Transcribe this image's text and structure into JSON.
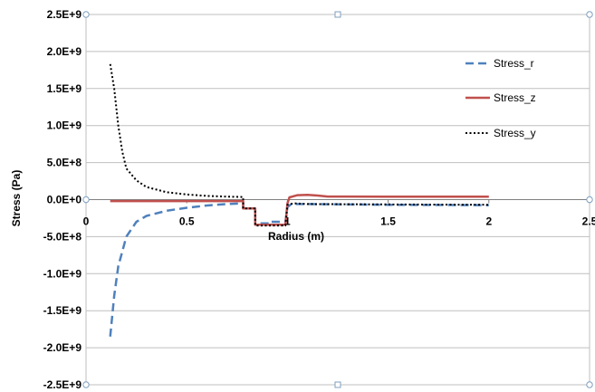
{
  "chart_data": {
    "type": "line",
    "xlabel": "Radius (m)",
    "ylabel": "Stress (Pa)",
    "xlim": [
      0,
      2.5
    ],
    "ylim": [
      -2500000000,
      2500000000
    ],
    "x_ticks": [
      "0",
      "0.5",
      "1",
      "1.5",
      "2",
      "2.5"
    ],
    "y_ticks": [
      "2.5E+9",
      "2.0E+9",
      "1.5E+9",
      "1.0E+9",
      "5.0E+8",
      "0.0E+0",
      "-5.0E+8",
      "-1.0E+9",
      "-1.5E+9",
      "-2.0E+9",
      "-2.5E+9"
    ],
    "grid": true,
    "legend_position": "top-right",
    "series": [
      {
        "name": "Stress_r",
        "color": "#4f81bd",
        "style": "dashed",
        "points": [
          [
            0.12,
            -1850000000
          ],
          [
            0.14,
            -1300000000
          ],
          [
            0.16,
            -900000000
          ],
          [
            0.2,
            -500000000
          ],
          [
            0.25,
            -300000000
          ],
          [
            0.3,
            -220000000
          ],
          [
            0.4,
            -150000000
          ],
          [
            0.5,
            -110000000
          ],
          [
            0.6,
            -80000000
          ],
          [
            0.7,
            -60000000
          ],
          [
            0.78,
            -50000000
          ],
          [
            0.78,
            -120000000
          ],
          [
            0.84,
            -120000000
          ],
          [
            0.84,
            -320000000
          ],
          [
            0.92,
            -320000000
          ],
          [
            0.92,
            -300000000
          ],
          [
            0.99,
            -300000000
          ],
          [
            1.0,
            -100000000
          ],
          [
            1.02,
            -60000000
          ],
          [
            1.1,
            -60000000
          ],
          [
            1.5,
            -70000000
          ],
          [
            2.0,
            -75000000
          ]
        ]
      },
      {
        "name": "Stress_z",
        "color": "#c0504d",
        "style": "solid",
        "points": [
          [
            0.12,
            -20000000
          ],
          [
            0.5,
            -20000000
          ],
          [
            0.78,
            -20000000
          ],
          [
            0.78,
            -120000000
          ],
          [
            0.84,
            -120000000
          ],
          [
            0.84,
            -340000000
          ],
          [
            0.99,
            -340000000
          ],
          [
            1.0,
            -50000000
          ],
          [
            1.01,
            30000000
          ],
          [
            1.05,
            60000000
          ],
          [
            1.1,
            65000000
          ],
          [
            1.15,
            55000000
          ],
          [
            1.2,
            42000000
          ],
          [
            1.5,
            40000000
          ],
          [
            2.0,
            40000000
          ]
        ]
      },
      {
        "name": "Stress_y",
        "color": "#000000",
        "style": "dotted",
        "points": [
          [
            0.12,
            1830000000
          ],
          [
            0.14,
            1500000000
          ],
          [
            0.16,
            1000000000
          ],
          [
            0.18,
            650000000
          ],
          [
            0.2,
            420000000
          ],
          [
            0.25,
            260000000
          ],
          [
            0.3,
            170000000
          ],
          [
            0.4,
            100000000
          ],
          [
            0.5,
            70000000
          ],
          [
            0.6,
            50000000
          ],
          [
            0.7,
            40000000
          ],
          [
            0.78,
            35000000
          ],
          [
            0.78,
            -120000000
          ],
          [
            0.84,
            -120000000
          ],
          [
            0.84,
            -350000000
          ],
          [
            0.99,
            -350000000
          ],
          [
            1.0,
            -70000000
          ],
          [
            1.03,
            -50000000
          ],
          [
            1.1,
            -60000000
          ],
          [
            1.5,
            -65000000
          ],
          [
            2.0,
            -70000000
          ]
        ]
      }
    ]
  }
}
